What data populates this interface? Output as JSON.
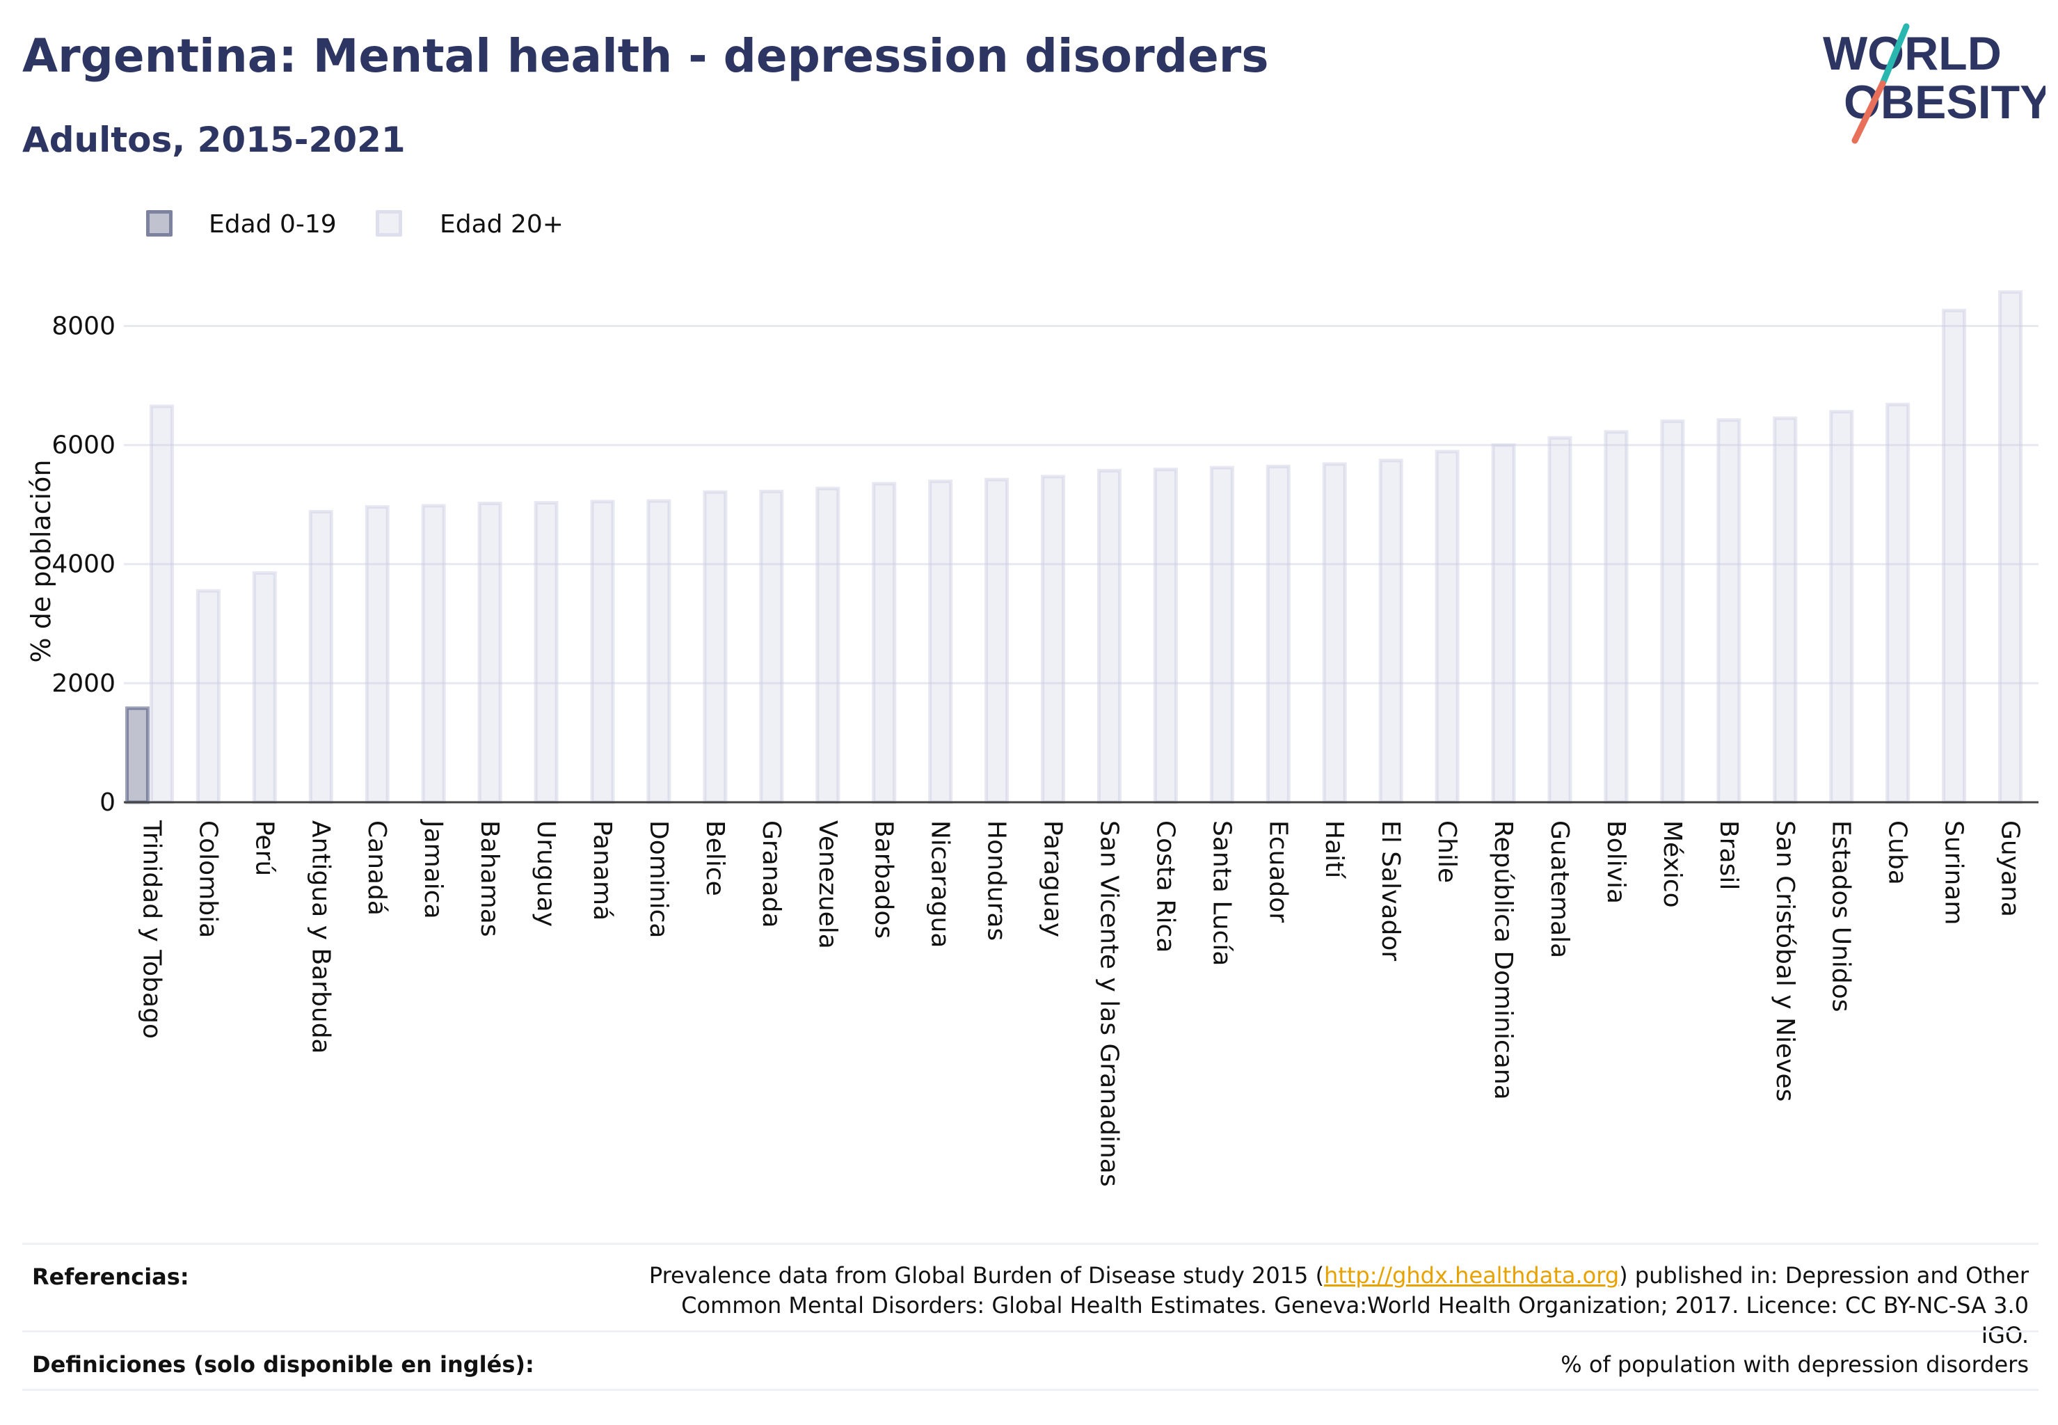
{
  "header": {
    "title": "Argentina: Mental health - depression disorders",
    "subtitle": "Adultos, 2015-2021",
    "logo_line1": "WORLD",
    "logo_line2": "OBESITY"
  },
  "legend": {
    "items": [
      {
        "label": "Edad 0-19",
        "color": "#2d3563"
      },
      {
        "label": "Edad 20+",
        "color": "#c9cbe0"
      }
    ]
  },
  "chart_data": {
    "type": "bar",
    "title": "",
    "xlabel": "",
    "ylabel": "% de población",
    "ylim": [
      0,
      8800
    ],
    "yticks": [
      0,
      2000,
      4000,
      6000,
      8000
    ],
    "grid": true,
    "legend_position": "top-left",
    "categories": [
      "Trinidad y Tobago",
      "Colombia",
      "Perú",
      "Antigua y Barbuda",
      "Canadá",
      "Jamaica",
      "Bahamas",
      "Uruguay",
      "Panamá",
      "Dominica",
      "Belice",
      "Granada",
      "Venezuela",
      "Barbados",
      "Nicaragua",
      "Honduras",
      "Paraguay",
      "San Vicente y las Granadinas",
      "Costa Rica",
      "Santa Lucía",
      "Ecuador",
      "Haití",
      "El Salvador",
      "Chile",
      "República Dominicana",
      "Guatemala",
      "Bolivia",
      "México",
      "Brasil",
      "San Cristóbal y Nieves",
      "Estados Unidos",
      "Cuba",
      "Surinam",
      "Guyana"
    ],
    "series": [
      {
        "name": "Edad 0-19",
        "color": "#2d3563",
        "values": [
          1580,
          null,
          null,
          null,
          null,
          null,
          null,
          null,
          null,
          null,
          null,
          null,
          null,
          null,
          null,
          null,
          null,
          null,
          null,
          null,
          null,
          null,
          null,
          null,
          null,
          null,
          null,
          null,
          null,
          null,
          null,
          null,
          null,
          null
        ]
      },
      {
        "name": "Edad 20+",
        "color": "#c9cbe0",
        "values": [
          6650,
          3550,
          3850,
          4880,
          4960,
          4980,
          5020,
          5030,
          5050,
          5060,
          5210,
          5220,
          5270,
          5350,
          5390,
          5420,
          5470,
          5570,
          5590,
          5620,
          5640,
          5680,
          5740,
          5890,
          6000,
          6120,
          6220,
          6400,
          6420,
          6450,
          6560,
          6680,
          8260,
          8570
        ]
      }
    ]
  },
  "footer": {
    "references_label": "Referencias:",
    "references_pre": "Prevalence data from Global Burden of Disease study 2015 (",
    "references_link": "http://ghdx.healthdata.org",
    "references_post": ") published in: Depression and Other Common Mental Disorders: Global Health Estimates. Geneva:World Health Organization; 2017. Licence: CC BY-NC-SA 3.0 IGO.",
    "definitions_label": "Definiciones (solo disponible en inglés):",
    "definitions_text": "% of population with depression disorders"
  }
}
